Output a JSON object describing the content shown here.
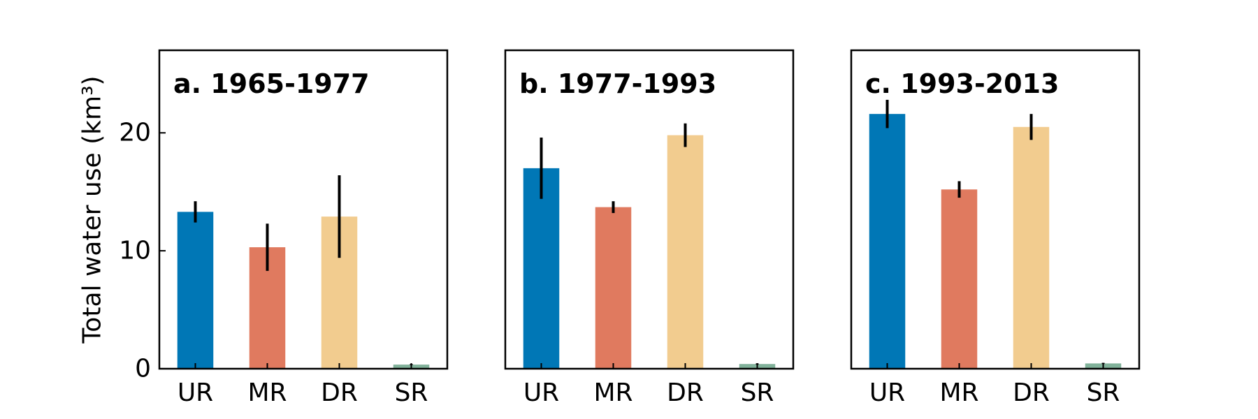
{
  "chart_data": [
    {
      "type": "bar",
      "title": "a. 1965-1977",
      "categories": [
        "UR",
        "MR",
        "DR",
        "SR"
      ],
      "values": [
        13.3,
        10.3,
        12.9,
        0.35
      ],
      "errors": [
        0.9,
        2.0,
        3.5,
        0.05
      ],
      "colors": [
        "#0077b6",
        "#e07a5f",
        "#f2cc8f",
        "#81b29a"
      ],
      "ylabel": "Total water use (km³)",
      "yticks": [
        "0",
        "10",
        "20"
      ],
      "ylim": [
        0,
        27
      ]
    },
    {
      "type": "bar",
      "title": "b. 1977-1993",
      "categories": [
        "UR",
        "MR",
        "DR",
        "SR"
      ],
      "values": [
        17.0,
        13.7,
        19.8,
        0.4
      ],
      "errors": [
        2.6,
        0.5,
        1.0,
        0.05
      ],
      "colors": [
        "#0077b6",
        "#e07a5f",
        "#f2cc8f",
        "#81b29a"
      ],
      "ylim": [
        0,
        27
      ]
    },
    {
      "type": "bar",
      "title": "c. 1993-2013",
      "categories": [
        "UR",
        "MR",
        "DR",
        "SR"
      ],
      "values": [
        21.6,
        15.2,
        20.5,
        0.45
      ],
      "errors": [
        1.2,
        0.7,
        1.1,
        0.05
      ],
      "colors": [
        "#0077b6",
        "#e07a5f",
        "#f2cc8f",
        "#81b29a"
      ],
      "ylim": [
        0,
        27
      ]
    }
  ]
}
